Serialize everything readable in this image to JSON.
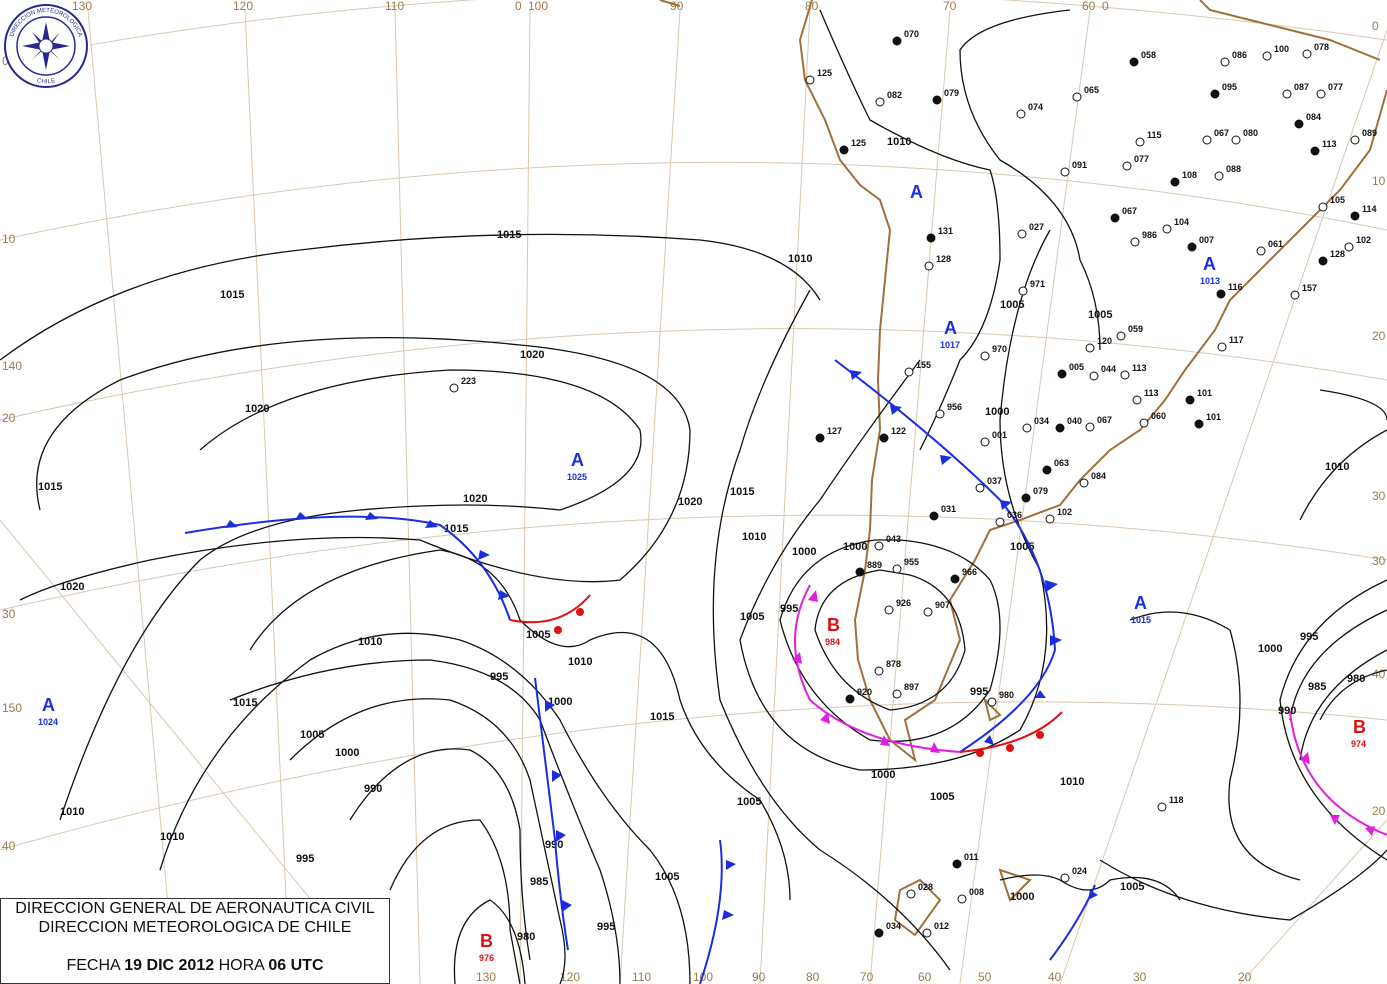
{
  "title_box": {
    "line1": "DIRECCION GENERAL DE AERONAUTICA CIVIL",
    "line2": "DIRECCION METEOROLOGICA DE CHILE",
    "fecha_label": "FECHA",
    "fecha": "19 DIC 2012",
    "hora_label": "HORA",
    "hora": "06 UTC"
  },
  "logo": {
    "text": "DIRECCION METEOROLOGICA",
    "country": "CHILE"
  },
  "grid_labels": {
    "top": [
      "130",
      "120",
      "110",
      "0",
      "100",
      "90",
      "80",
      "70",
      "60",
      "0"
    ],
    "bottom": [
      "130",
      "120",
      "110",
      "100",
      "90",
      "80",
      "70",
      "60",
      "50",
      "40",
      "30",
      "20"
    ],
    "left": [
      "0",
      "10",
      "140",
      "20",
      "30",
      "150",
      "40"
    ],
    "right": [
      "0",
      "10",
      "20",
      "30",
      "30",
      "40",
      "20"
    ]
  },
  "pressure_centers": [
    {
      "type": "A",
      "value": "1025"
    },
    {
      "type": "A",
      "value": "1024"
    },
    {
      "type": "B",
      "value": "984"
    },
    {
      "type": "A",
      "value": "1015"
    },
    {
      "type": "B",
      "value": "976"
    },
    {
      "type": "B",
      "value": "974"
    },
    {
      "type": "A",
      "value": "1017"
    },
    {
      "type": "A",
      "value": ""
    },
    {
      "type": "A",
      "value": "1013"
    }
  ],
  "isobar_labels": [
    "1015",
    "1015",
    "1020",
    "1020",
    "1015",
    "1020",
    "1020",
    "1015",
    "1020",
    "1010",
    "1015",
    "1005",
    "1010",
    "1005",
    "995",
    "1000",
    "1000",
    "995",
    "990",
    "1010",
    "1015",
    "1015",
    "1010",
    "1005",
    "1000",
    "1000",
    "1005",
    "995",
    "1000",
    "1005",
    "1010",
    "1010",
    "1005",
    "1010",
    "1005",
    "1000",
    "995",
    "985",
    "980",
    "990",
    "1005",
    "1005",
    "1000",
    "995",
    "990",
    "985",
    "980",
    "1010",
    "1010",
    "1005",
    "1000",
    "995"
  ],
  "colors": {
    "high": "#1a2ee0",
    "low": "#e01010",
    "cold_front": "#1a2ee0",
    "warm_front": "#e01010",
    "occluded_front": "#e020e0",
    "coast": "#a0703a",
    "grid": "#d9c7b0"
  },
  "stations": [
    "070",
    "125",
    "082",
    "079",
    "074",
    "065",
    "058",
    "078",
    "086",
    "095",
    "087",
    "077",
    "084",
    "080",
    "089",
    "113",
    "067",
    "115",
    "125",
    "091",
    "077",
    "108",
    "088",
    "100",
    "131",
    "128",
    "027",
    "067",
    "104",
    "986",
    "007",
    "061",
    "102",
    "128",
    "971",
    "970",
    "116",
    "157",
    "105",
    "114",
    "059",
    "117",
    "101",
    "155",
    "956",
    "122",
    "001",
    "034",
    "040",
    "044",
    "113",
    "101",
    "067",
    "060",
    "063",
    "084",
    "037",
    "079",
    "036",
    "102",
    "031",
    "043",
    "955",
    "966",
    "926",
    "907",
    "889",
    "878",
    "897",
    "920",
    "980",
    "118",
    "011",
    "028",
    "008",
    "034",
    "012",
    "024",
    "127",
    "223",
    "113",
    "005",
    "120"
  ]
}
